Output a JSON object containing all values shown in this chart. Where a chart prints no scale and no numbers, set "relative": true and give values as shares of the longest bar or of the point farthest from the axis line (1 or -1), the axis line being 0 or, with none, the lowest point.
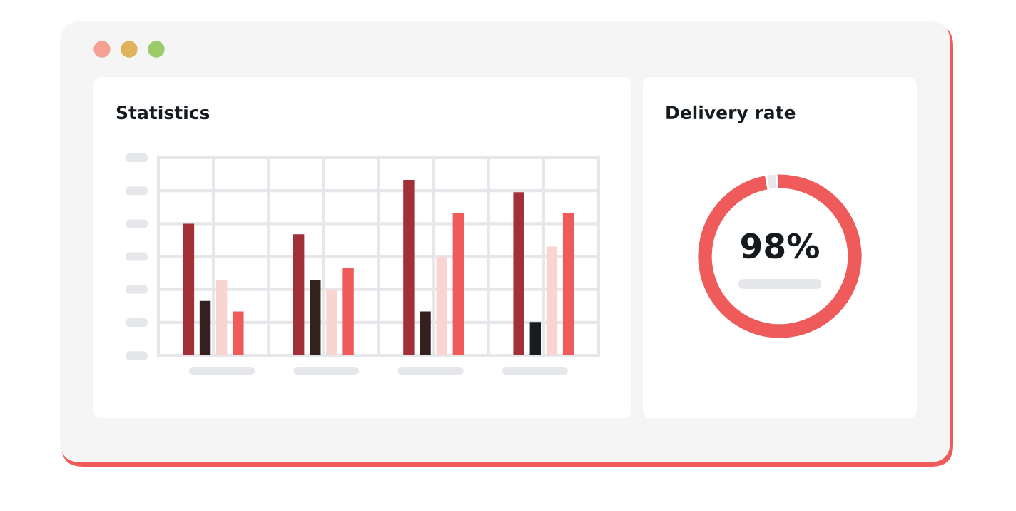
{
  "chart_data": [
    {
      "type": "bar",
      "title": "Statistics",
      "relative": true,
      "grid": true,
      "categories": [
        null,
        null,
        null,
        null
      ],
      "series": [
        {
          "color": "#a23038",
          "values": [
            0.75,
            0.69,
            1.0,
            0.93
          ]
        },
        {
          "color": "#33201f",
          "colors": [
            "#33201f",
            "#33201f",
            "#33201f",
            "#181c1f"
          ],
          "values": [
            0.31,
            0.43,
            0.25,
            0.19
          ]
        },
        {
          "color": "#f8d5d0",
          "values": [
            0.43,
            0.37,
            0.56,
            0.62
          ]
        },
        {
          "color": "#ef5a5a",
          "values": [
            0.25,
            0.5,
            0.81,
            0.81
          ]
        }
      ]
    },
    {
      "type": "donut",
      "title": "Delivery rate",
      "categories": [
        null,
        null
      ],
      "values": [
        98,
        2
      ],
      "colors": [
        "#ef5a5a",
        "#e5e7ea"
      ],
      "annotations": [
        "98%"
      ]
    }
  ]
}
